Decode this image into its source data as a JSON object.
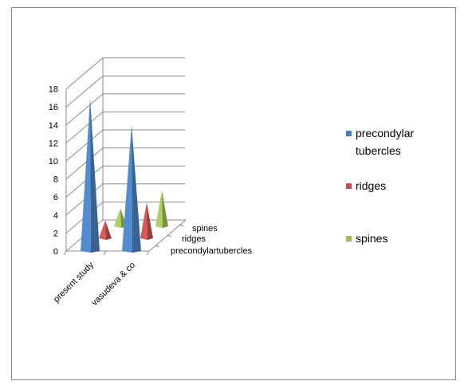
{
  "chart_data": {
    "type": "bar",
    "subtype": "3d-cone",
    "title": "",
    "xlabel": "",
    "ylabel": "",
    "categories": [
      "present study",
      "vasudeva & co"
    ],
    "depth_labels": [
      "precondylartubercles",
      "ridges",
      "spines"
    ],
    "series": [
      {
        "name": "precondylar tubercles",
        "values": [
          17,
          14
        ],
        "color": "#4a7ebb"
      },
      {
        "name": "ridges",
        "values": [
          2,
          4
        ],
        "color": "#c0504d"
      },
      {
        "name": "spines",
        "values": [
          2,
          4
        ],
        "color": "#9bbb59"
      }
    ],
    "yticks": [
      "0",
      "2",
      "4",
      "6",
      "8",
      "10",
      "12",
      "14",
      "16",
      "18"
    ],
    "ylim": [
      0,
      18
    ],
    "grid": true,
    "legend": {
      "position": "right",
      "entries": [
        {
          "lines": [
            "precondylar",
            "tubercles"
          ],
          "color": "#4a7ebb"
        },
        {
          "lines": [
            "ridges"
          ],
          "color": "#c0504d"
        },
        {
          "lines": [
            "spines"
          ],
          "color": "#9bbb59"
        }
      ]
    }
  }
}
